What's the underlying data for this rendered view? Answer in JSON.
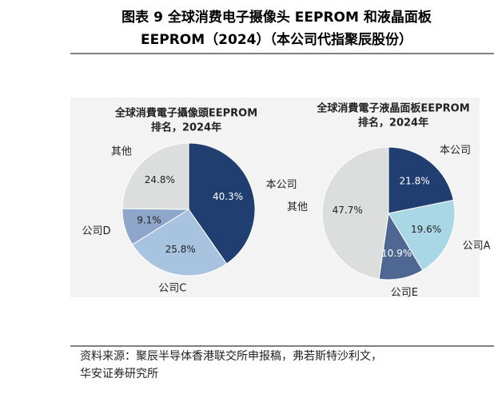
{
  "header": {
    "title": [
      "图表 9 全球消费电子摄像头 EEPROM 和液晶面板",
      "EEPROM（2024）（本公司代指聚辰股份）"
    ]
  },
  "chart_data": [
    {
      "type": "pie",
      "title": [
        "全球消費電子攝像頭EEPROM",
        "排名，2024年"
      ],
      "categories": [
        "本公司",
        "公司C",
        "公司D",
        "其他"
      ],
      "values": [
        40.3,
        25.8,
        9.1,
        24.8
      ],
      "value_labels": [
        "40.3%",
        "25.8%",
        "9.1%",
        "24.8%"
      ],
      "colors": [
        "#203f70",
        "#a7c3e0",
        "#8ea6c9",
        "#dcdddd"
      ]
    },
    {
      "type": "pie",
      "title": [
        "全球消費電子液晶面板EEPROM",
        "排名，2024年"
      ],
      "categories": [
        "本公司",
        "公司A",
        "公司E",
        "其他"
      ],
      "values": [
        21.8,
        19.6,
        10.9,
        47.7
      ],
      "value_labels": [
        "21.8%",
        "19.6%",
        "10.9%",
        "47.7%"
      ],
      "colors": [
        "#203f70",
        "#aad7e6",
        "#4e6893",
        "#dcdddd"
      ]
    }
  ],
  "source": [
    "资料来源：聚辰半导体香港联交所申报稿，弗若斯特沙利文，",
    "华安证券研究所"
  ]
}
